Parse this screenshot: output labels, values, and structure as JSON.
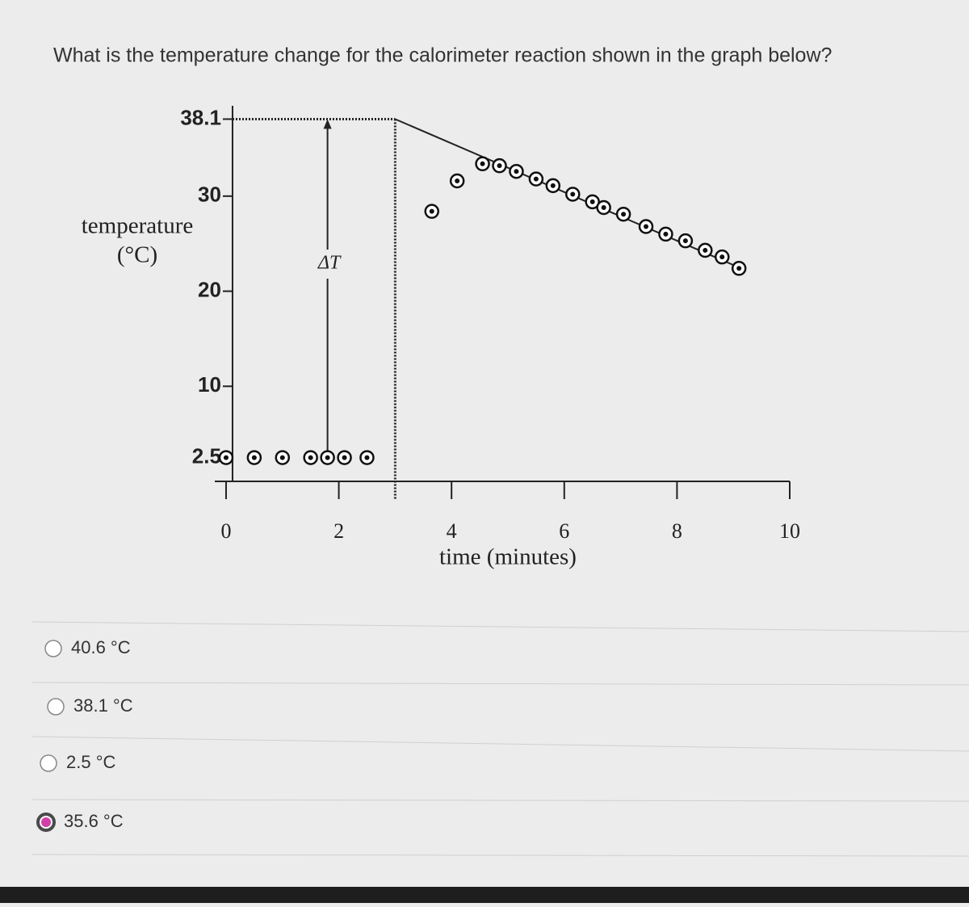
{
  "question": "What is the temperature change for the calorimeter reaction shown in the graph below?",
  "chart_data": {
    "type": "scatter",
    "ylabel": [
      "temperature",
      "(°C)"
    ],
    "xlabel": "time (minutes)",
    "xlim": [
      -0.2,
      10
    ],
    "ylim": [
      0,
      39.5
    ],
    "xticks": [
      0,
      2,
      4,
      6,
      8,
      10
    ],
    "yticks": [
      38.1,
      30,
      20,
      10,
      2.5
    ],
    "color": "#111111",
    "series": [
      {
        "x": [
          0,
          0.5,
          1,
          1.5,
          1.8,
          2.1,
          2.5,
          3.65,
          4.1,
          4.55,
          4.85,
          5.15,
          5.5,
          5.8,
          6.15,
          6.5,
          6.7,
          7.05,
          7.45,
          7.8,
          8.15,
          8.5,
          8.8,
          9.1
        ],
        "values": [
          2.5,
          2.5,
          2.5,
          2.5,
          2.5,
          2.5,
          2.5,
          28.4,
          31.6,
          33.4,
          33.2,
          32.6,
          31.8,
          31.1,
          30.2,
          29.4,
          28.8,
          28.1,
          26.8,
          26,
          25.3,
          24.3,
          23.6,
          22.4
        ]
      }
    ],
    "extrapolation": {
      "x": [
        3,
        9.1
      ],
      "values": [
        38.1,
        22.5
      ]
    },
    "mix_time": 3,
    "annotation": {
      "text": "ΔT",
      "x": 1.8,
      "values": [
        2.5,
        38.1
      ]
    }
  },
  "options": {
    "items": [
      "40.6 °C",
      "38.1 °C",
      "2.5 °C",
      "35.6 °C"
    ],
    "selected": 3
  }
}
